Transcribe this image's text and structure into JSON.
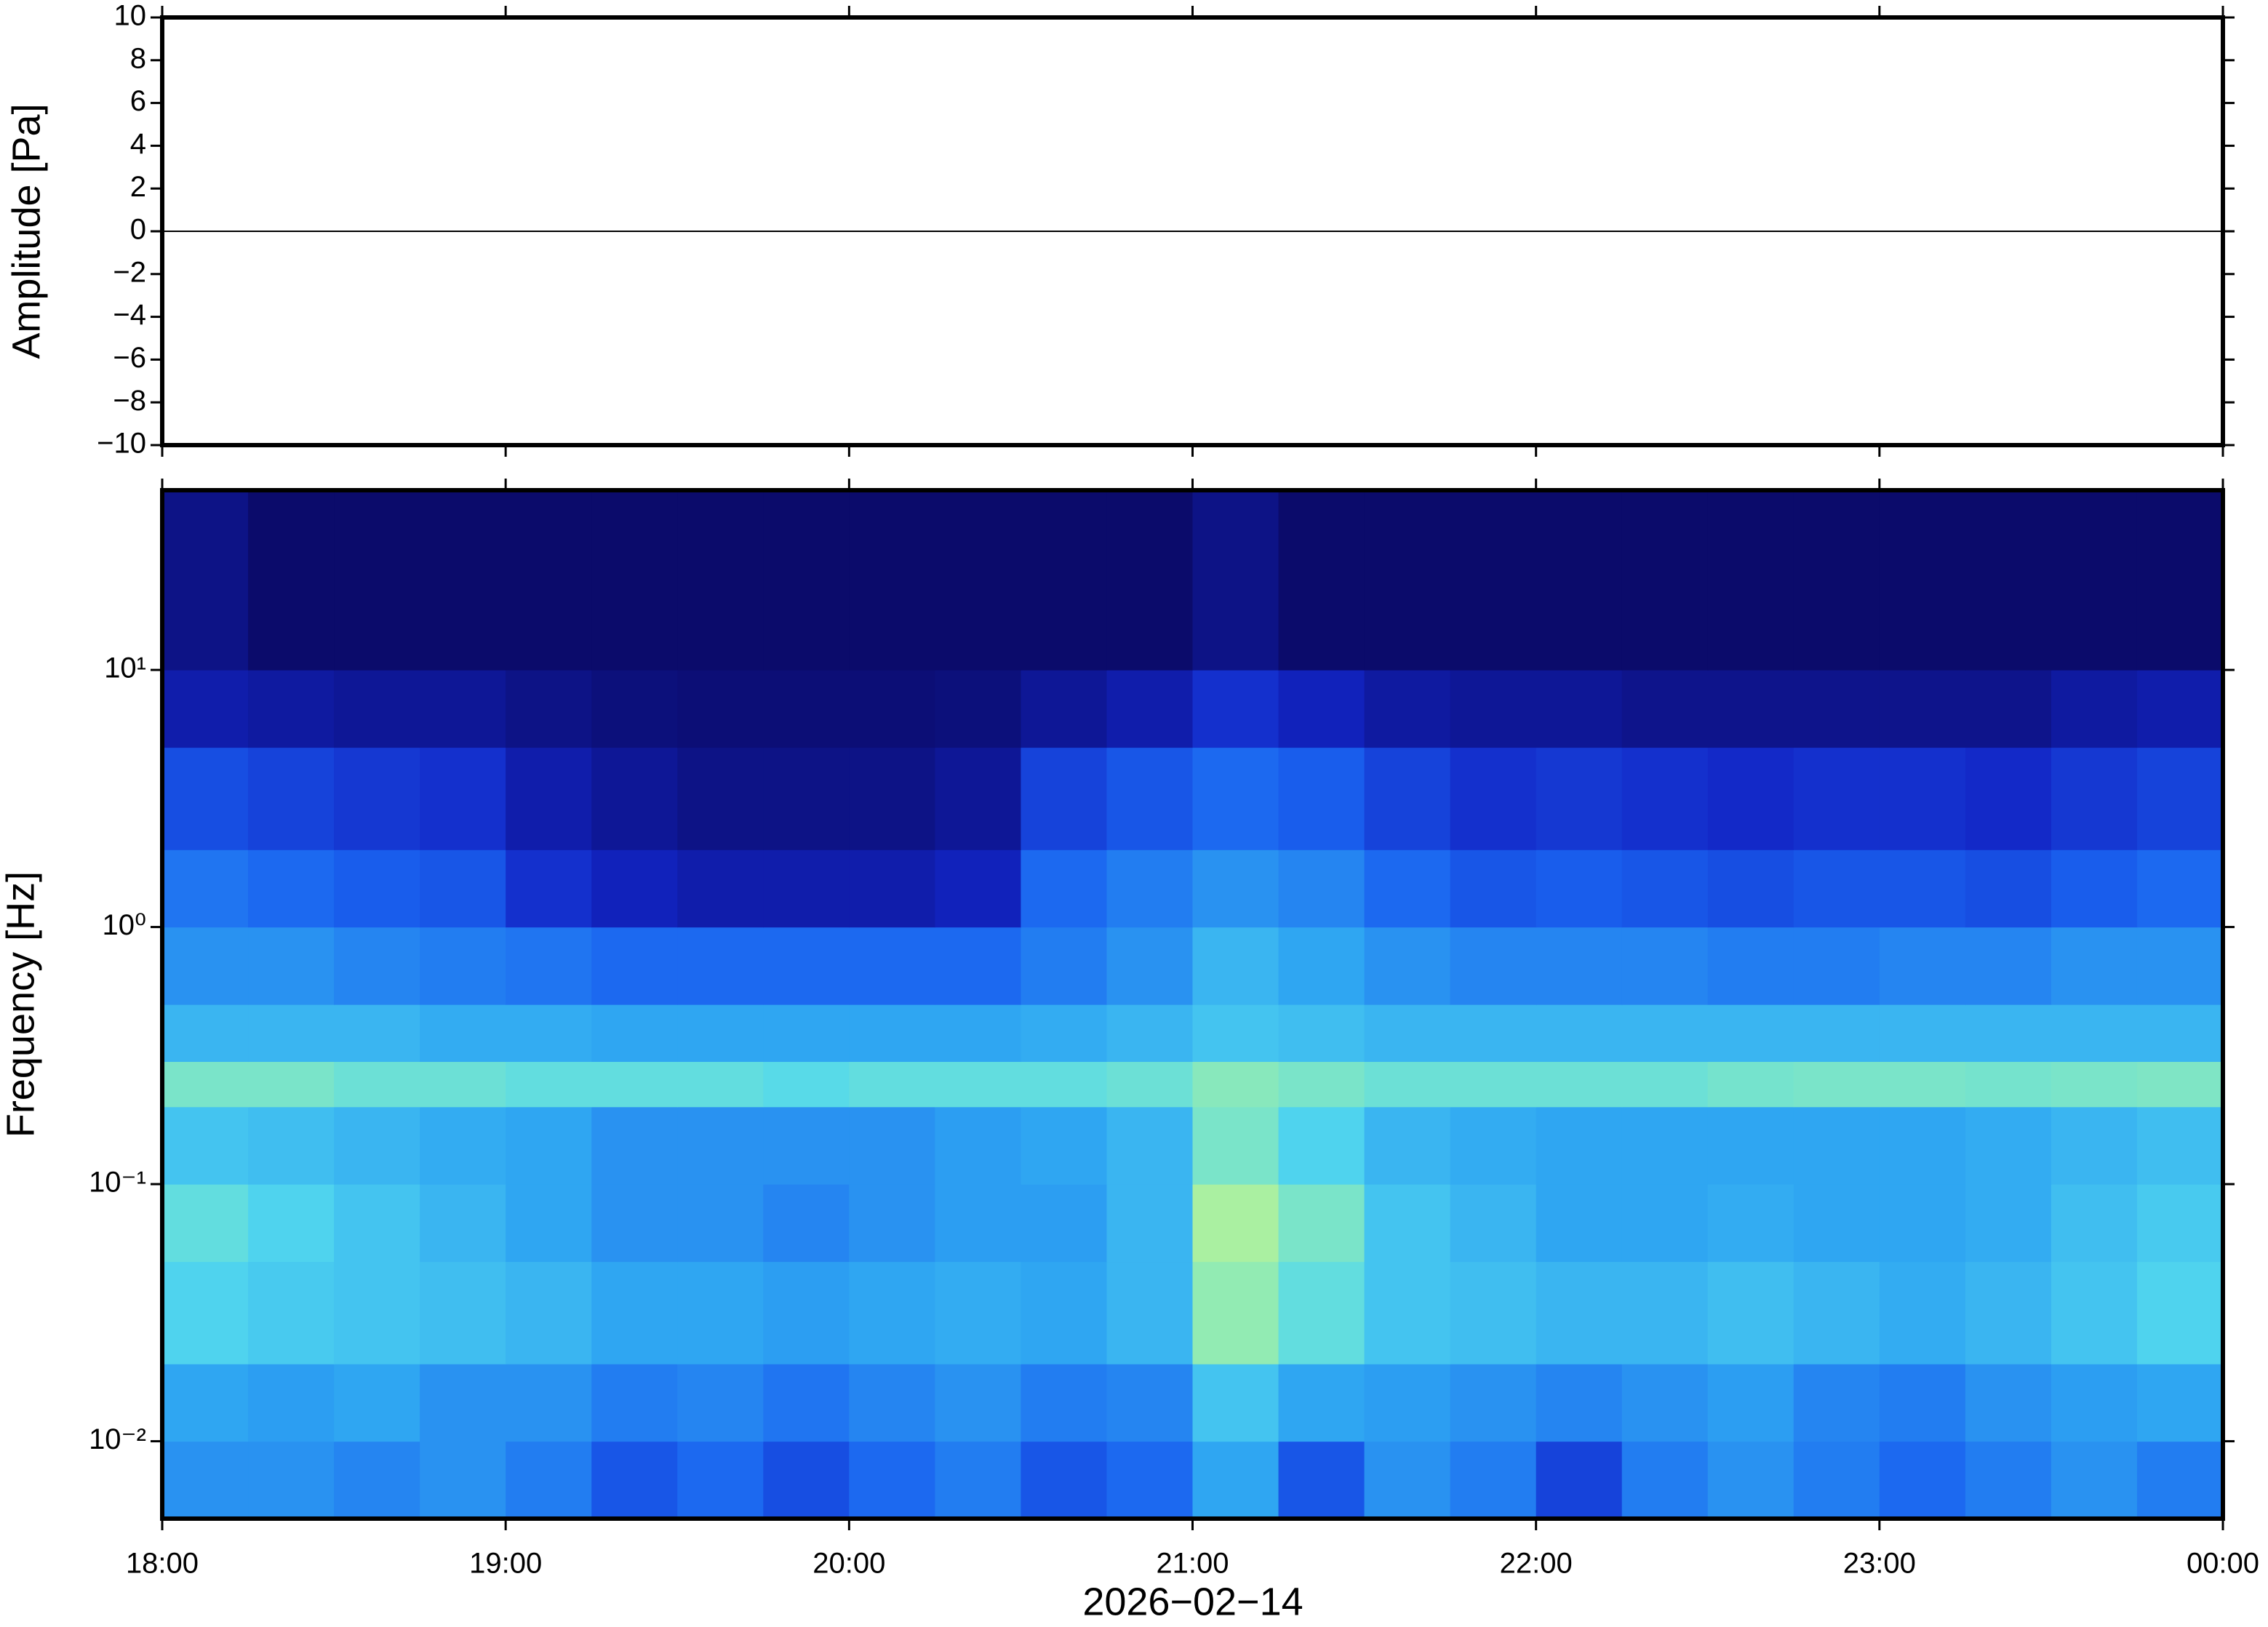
{
  "chart_data": [
    {
      "type": "line",
      "ylabel": "Amplitude [Pa]",
      "x": [
        18,
        18.5,
        19,
        19.5,
        20,
        20.5,
        21,
        21.5,
        22,
        22.5,
        23,
        23.5,
        24
      ],
      "values": [
        0,
        0,
        0,
        0,
        0,
        0,
        0,
        0,
        0,
        0,
        0,
        0,
        0
      ],
      "color": "#000000",
      "xlim": [
        18,
        24
      ],
      "ylim": [
        -10,
        10
      ],
      "yticks": [
        {
          "value": -10,
          "label": "−10"
        },
        {
          "value": -8,
          "label": "−8"
        },
        {
          "value": -6,
          "label": "−6"
        },
        {
          "value": -4,
          "label": "−4"
        },
        {
          "value": -2,
          "label": "−2"
        },
        0,
        2,
        4,
        6,
        8,
        10
      ]
    },
    {
      "type": "heatmap",
      "ylabel": "Frequency [Hz]",
      "xlabel": "2026−02−14",
      "xlim": [
        18,
        24
      ],
      "ylim": [
        0.005,
        50
      ],
      "ylog": true,
      "xticks": [
        {
          "value": 18,
          "label": "18:00"
        },
        {
          "value": 19,
          "label": "19:00"
        },
        {
          "value": 20,
          "label": "20:00"
        },
        {
          "value": 21,
          "label": "21:00"
        },
        {
          "value": 22,
          "label": "22:00"
        },
        {
          "value": 23,
          "label": "23:00"
        },
        {
          "value": 24,
          "label": "00:00"
        }
      ],
      "yticks": [
        {
          "value": 0.01,
          "label": "10⁻²"
        },
        {
          "value": 0.1,
          "label": "10⁻¹"
        },
        {
          "value": 1,
          "label": "10⁰"
        },
        {
          "value": 10,
          "label": "10¹"
        }
      ],
      "xbins": [
        18,
        18.25,
        18.5,
        18.75,
        19,
        19.25,
        19.5,
        19.75,
        20,
        20.25,
        20.5,
        20.75,
        21,
        21.25,
        21.5,
        21.75,
        22,
        22.25,
        22.5,
        22.75,
        23,
        23.25,
        23.5,
        23.75,
        24
      ],
      "ybins": [
        0.005,
        0.01,
        0.02,
        0.05,
        0.1,
        0.2,
        0.3,
        0.5,
        1,
        2,
        5,
        10,
        50
      ],
      "zlim": [
        0,
        1
      ],
      "colormap": [
        "#0b0b6b",
        "#1224c4",
        "#1a62f0",
        "#2fa6f2",
        "#52d8ee",
        "#a2f0a4",
        "#f2f284"
      ],
      "z": [
        [
          0.45,
          0.45,
          0.42,
          0.45,
          0.4,
          0.3,
          0.35,
          0.28,
          0.35,
          0.4,
          0.3,
          0.35,
          0.5,
          0.3,
          0.45,
          0.4,
          0.25,
          0.4,
          0.45,
          0.4,
          0.35,
          0.4,
          0.45,
          0.4
        ],
        [
          0.5,
          0.48,
          0.5,
          0.45,
          0.45,
          0.4,
          0.42,
          0.38,
          0.42,
          0.45,
          0.4,
          0.42,
          0.6,
          0.5,
          0.48,
          0.45,
          0.42,
          0.45,
          0.48,
          0.42,
          0.4,
          0.45,
          0.48,
          0.5
        ],
        [
          0.65,
          0.62,
          0.6,
          0.58,
          0.55,
          0.5,
          0.5,
          0.48,
          0.5,
          0.52,
          0.5,
          0.55,
          0.8,
          0.7,
          0.6,
          0.58,
          0.55,
          0.55,
          0.58,
          0.55,
          0.52,
          0.55,
          0.6,
          0.65
        ],
        [
          0.7,
          0.65,
          0.6,
          0.55,
          0.5,
          0.45,
          0.45,
          0.42,
          0.45,
          0.48,
          0.48,
          0.55,
          0.85,
          0.75,
          0.6,
          0.55,
          0.5,
          0.5,
          0.52,
          0.5,
          0.5,
          0.52,
          0.58,
          0.62
        ],
        [
          0.6,
          0.58,
          0.55,
          0.52,
          0.5,
          0.45,
          0.45,
          0.45,
          0.45,
          0.48,
          0.5,
          0.55,
          0.75,
          0.65,
          0.55,
          0.52,
          0.5,
          0.5,
          0.5,
          0.5,
          0.5,
          0.52,
          0.55,
          0.58
        ],
        [
          0.75,
          0.75,
          0.72,
          0.72,
          0.7,
          0.7,
          0.7,
          0.68,
          0.7,
          0.7,
          0.7,
          0.72,
          0.78,
          0.75,
          0.72,
          0.72,
          0.72,
          0.72,
          0.74,
          0.75,
          0.75,
          0.74,
          0.75,
          0.76
        ],
        [
          0.55,
          0.55,
          0.55,
          0.52,
          0.52,
          0.5,
          0.5,
          0.5,
          0.5,
          0.5,
          0.52,
          0.55,
          0.6,
          0.58,
          0.55,
          0.55,
          0.55,
          0.55,
          0.55,
          0.55,
          0.55,
          0.55,
          0.55,
          0.55
        ],
        [
          0.45,
          0.45,
          0.42,
          0.4,
          0.38,
          0.35,
          0.35,
          0.35,
          0.35,
          0.35,
          0.4,
          0.45,
          0.55,
          0.5,
          0.45,
          0.42,
          0.42,
          0.42,
          0.4,
          0.4,
          0.42,
          0.42,
          0.45,
          0.45
        ],
        [
          0.38,
          0.35,
          0.32,
          0.3,
          0.2,
          0.15,
          0.12,
          0.12,
          0.12,
          0.15,
          0.35,
          0.4,
          0.45,
          0.42,
          0.35,
          0.3,
          0.32,
          0.3,
          0.28,
          0.3,
          0.3,
          0.28,
          0.32,
          0.35
        ],
        [
          0.28,
          0.25,
          0.22,
          0.2,
          0.12,
          0.08,
          0.05,
          0.05,
          0.05,
          0.08,
          0.25,
          0.3,
          0.35,
          0.32,
          0.25,
          0.2,
          0.22,
          0.2,
          0.18,
          0.2,
          0.2,
          0.18,
          0.22,
          0.25
        ],
        [
          0.12,
          0.1,
          0.08,
          0.08,
          0.05,
          0.03,
          0.02,
          0.02,
          0.02,
          0.03,
          0.08,
          0.12,
          0.2,
          0.15,
          0.1,
          0.08,
          0.08,
          0.06,
          0.06,
          0.06,
          0.06,
          0.06,
          0.1,
          0.12
        ],
        [
          0.05,
          0,
          0,
          0,
          0,
          0,
          0,
          0,
          0,
          0,
          0,
          0,
          0.05,
          0,
          0,
          0,
          0,
          0,
          0,
          0,
          0,
          0,
          0,
          0
        ]
      ]
    }
  ]
}
